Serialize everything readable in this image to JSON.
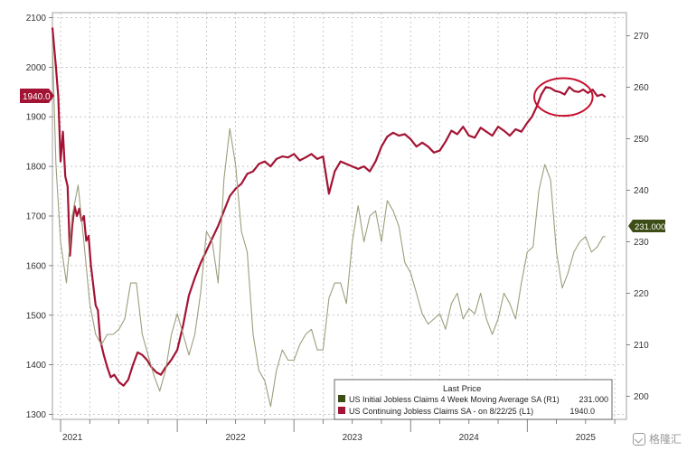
{
  "chart_data": {
    "type": "line",
    "title": "",
    "xlabel": "",
    "ylabel": "",
    "x_axis": {
      "min": 2020.93,
      "max": 2025.85,
      "year_labels": [
        {
          "year": 2021,
          "label": "2021"
        },
        {
          "year": 2022,
          "label": "2022"
        },
        {
          "year": 2023,
          "label": "2023"
        },
        {
          "year": 2024,
          "label": "2024"
        },
        {
          "year": 2025,
          "label": "2025"
        }
      ]
    },
    "left_axis": {
      "ylim": [
        1290,
        2110
      ],
      "ticks": [
        1300,
        1400,
        1500,
        1600,
        1700,
        1800,
        1900,
        2000,
        2100
      ]
    },
    "right_axis": {
      "ylim": [
        195.5,
        274.5
      ],
      "ticks": [
        200,
        210,
        220,
        230,
        240,
        250,
        260,
        270
      ]
    },
    "grid": true,
    "legend": {
      "heading": "Last Price",
      "placement": "bottom-right",
      "entries": [
        {
          "label": "US Initial Jobless Claims 4 Week Moving Average SA  (R1)",
          "value": "231.000",
          "color": "#3d4d16"
        },
        {
          "label": "US Continuing Jobless Claims SA -  on 8/22/25  (L1)",
          "value": "1940.0",
          "color": "#a31434"
        }
      ]
    },
    "last_value_labels": {
      "left": "1940.0",
      "right": "231.000"
    },
    "series": [
      {
        "key": "continuing",
        "axis": "left",
        "color": "#a31434",
        "x": [
          2020.93,
          2020.96,
          2020.98,
          2021.0,
          2021.02,
          2021.04,
          2021.06,
          2021.08,
          2021.1,
          2021.12,
          2021.14,
          2021.16,
          2021.18,
          2021.2,
          2021.22,
          2021.24,
          2021.26,
          2021.28,
          2021.3,
          2021.32,
          2021.34,
          2021.37,
          2021.4,
          2021.43,
          2021.46,
          2021.5,
          2021.54,
          2021.58,
          2021.62,
          2021.66,
          2021.7,
          2021.74,
          2021.78,
          2021.82,
          2021.86,
          2021.9,
          2021.95,
          2022.0,
          2022.05,
          2022.1,
          2022.15,
          2022.2,
          2022.25,
          2022.3,
          2022.35,
          2022.4,
          2022.45,
          2022.5,
          2022.55,
          2022.6,
          2022.65,
          2022.7,
          2022.75,
          2022.8,
          2022.85,
          2022.9,
          2022.95,
          2023.0,
          2023.05,
          2023.1,
          2023.15,
          2023.2,
          2023.25,
          2023.3,
          2023.35,
          2023.4,
          2023.45,
          2023.5,
          2023.55,
          2023.6,
          2023.65,
          2023.7,
          2023.75,
          2023.8,
          2023.85,
          2023.9,
          2023.95,
          2024.0,
          2024.05,
          2024.1,
          2024.15,
          2024.2,
          2024.25,
          2024.3,
          2024.35,
          2024.4,
          2024.45,
          2024.5,
          2024.55,
          2024.6,
          2024.65,
          2024.7,
          2024.75,
          2024.8,
          2024.85,
          2024.9,
          2024.95,
          2025.0,
          2025.04,
          2025.08,
          2025.12,
          2025.16,
          2025.2,
          2025.24,
          2025.28,
          2025.32,
          2025.36,
          2025.4,
          2025.44,
          2025.48,
          2025.52,
          2025.56,
          2025.6,
          2025.64,
          2025.67
        ],
        "values": [
          2080,
          2000,
          1940,
          1810,
          1870,
          1780,
          1760,
          1620,
          1680,
          1720,
          1700,
          1715,
          1690,
          1700,
          1650,
          1660,
          1600,
          1560,
          1520,
          1510,
          1450,
          1420,
          1395,
          1375,
          1380,
          1365,
          1358,
          1370,
          1400,
          1425,
          1420,
          1410,
          1395,
          1385,
          1380,
          1395,
          1410,
          1430,
          1480,
          1540,
          1575,
          1605,
          1630,
          1655,
          1680,
          1710,
          1740,
          1755,
          1765,
          1785,
          1790,
          1805,
          1810,
          1800,
          1815,
          1820,
          1818,
          1825,
          1812,
          1818,
          1825,
          1815,
          1820,
          1745,
          1790,
          1810,
          1805,
          1800,
          1795,
          1800,
          1790,
          1810,
          1840,
          1860,
          1868,
          1862,
          1865,
          1855,
          1840,
          1848,
          1840,
          1828,
          1832,
          1850,
          1872,
          1865,
          1880,
          1862,
          1858,
          1878,
          1870,
          1862,
          1880,
          1872,
          1862,
          1875,
          1870,
          1888,
          1900,
          1920,
          1945,
          1960,
          1958,
          1952,
          1950,
          1945,
          1960,
          1952,
          1950,
          1955,
          1948,
          1955,
          1942,
          1945,
          1940
        ]
      },
      {
        "key": "initial",
        "axis": "right",
        "color": "#9c9e7c",
        "x": [
          2020.93,
          2020.96,
          2021.0,
          2021.05,
          2021.1,
          2021.15,
          2021.2,
          2021.25,
          2021.3,
          2021.35,
          2021.4,
          2021.45,
          2021.5,
          2021.55,
          2021.6,
          2021.65,
          2021.7,
          2021.75,
          2021.8,
          2021.85,
          2021.9,
          2021.95,
          2022.0,
          2022.05,
          2022.1,
          2022.15,
          2022.2,
          2022.25,
          2022.3,
          2022.35,
          2022.4,
          2022.45,
          2022.5,
          2022.55,
          2022.6,
          2022.65,
          2022.7,
          2022.75,
          2022.8,
          2022.85,
          2022.9,
          2022.95,
          2023.0,
          2023.05,
          2023.1,
          2023.15,
          2023.2,
          2023.25,
          2023.3,
          2023.35,
          2023.4,
          2023.45,
          2023.5,
          2023.55,
          2023.6,
          2023.65,
          2023.7,
          2023.75,
          2023.8,
          2023.85,
          2023.9,
          2023.95,
          2024.0,
          2024.05,
          2024.1,
          2024.15,
          2024.2,
          2024.25,
          2024.3,
          2024.35,
          2024.4,
          2024.45,
          2024.5,
          2024.55,
          2024.6,
          2024.65,
          2024.7,
          2024.75,
          2024.8,
          2024.85,
          2024.9,
          2024.95,
          2025.0,
          2025.05,
          2025.1,
          2025.15,
          2025.2,
          2025.25,
          2025.3,
          2025.35,
          2025.4,
          2025.45,
          2025.5,
          2025.55,
          2025.6,
          2025.65,
          2025.67
        ],
        "values": [
          268,
          245,
          230,
          222,
          235,
          241,
          230,
          218,
          212,
          210,
          212,
          212,
          213,
          215,
          222,
          222,
          212,
          208,
          204,
          201,
          205,
          212,
          216,
          212,
          208,
          212,
          220,
          232,
          230,
          222,
          242,
          252,
          245,
          232,
          228,
          212,
          205,
          203,
          198,
          205,
          209,
          207,
          207,
          210,
          212,
          213,
          209,
          209,
          219,
          222,
          222,
          218,
          230,
          237,
          230,
          235,
          236,
          230,
          238,
          236,
          233,
          226,
          224,
          220,
          216,
          214,
          215,
          216,
          213,
          218,
          220,
          215,
          217,
          216,
          220,
          215,
          212,
          215,
          220,
          218,
          215,
          222,
          228,
          229,
          240,
          245,
          242,
          228,
          221,
          224,
          228,
          230,
          231,
          228,
          229,
          231,
          231
        ]
      }
    ],
    "annotations": [
      {
        "type": "ellipse",
        "color": "#c8102e",
        "x_range": [
          2025.06,
          2025.56
        ],
        "y_range_left": [
          1902,
          1978
        ]
      }
    ]
  },
  "watermark": {
    "text": "格隆汇"
  }
}
